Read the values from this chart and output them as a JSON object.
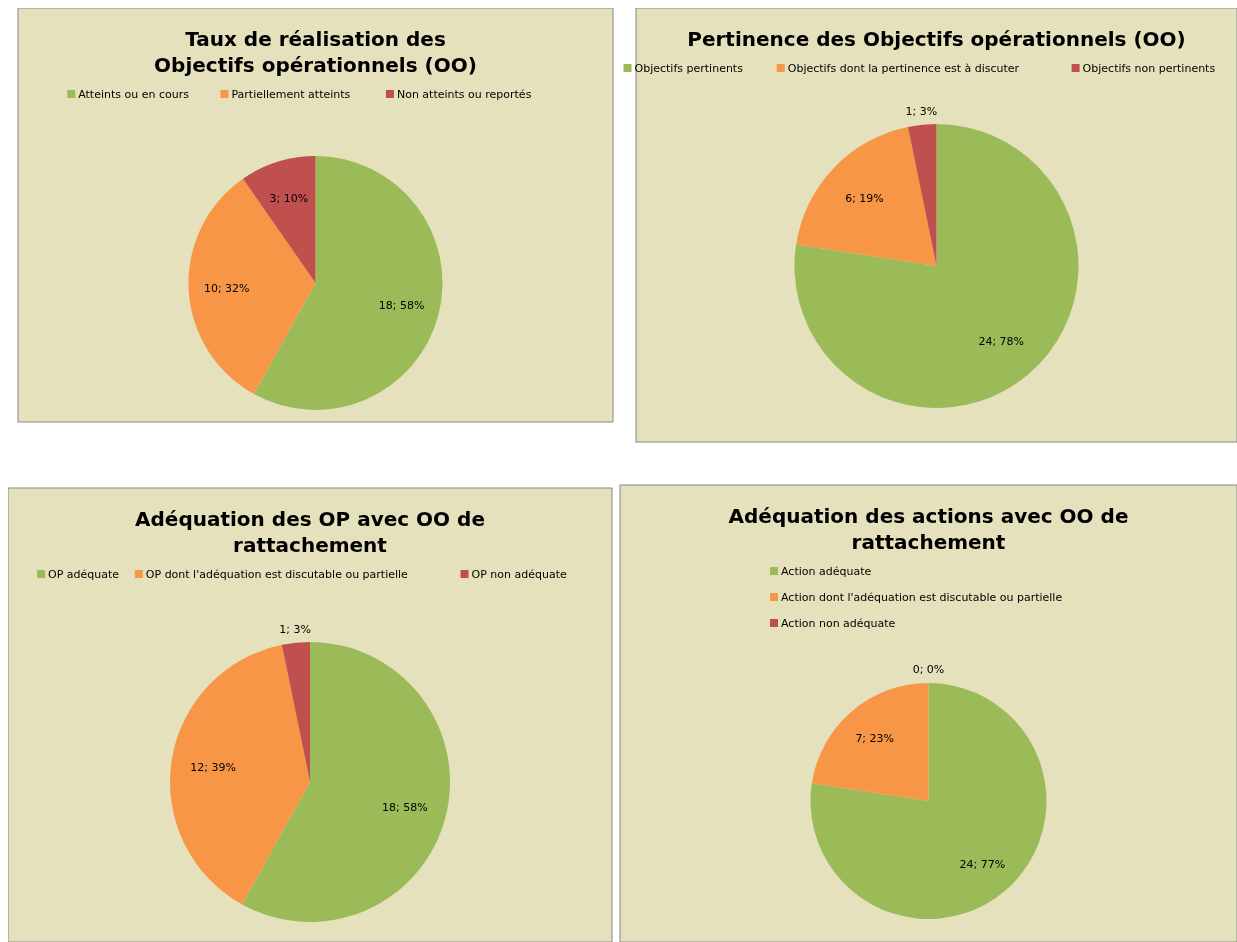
{
  "chart_data": [
    {
      "type": "pie",
      "title": "Taux de réalisation des Objectifs opérationnels (OO)",
      "categories": [
        "Atteints ou en cours",
        "Partiellement atteints",
        "Non atteints ou reportés"
      ],
      "values": [
        18,
        10,
        3
      ],
      "colors": [
        "#9bbb59",
        "#f79646",
        "#c0504d"
      ],
      "value_labels": [
        "18; 58%",
        "10; 32%",
        "3; 10%"
      ],
      "legend": "top"
    },
    {
      "type": "pie",
      "title": "Pertinence des Objectifs opérationnels (OO)",
      "categories": [
        "Objectifs pertinents",
        "Objectifs dont la pertinence est à discuter",
        "Objectifs non pertinents"
      ],
      "values": [
        24,
        6,
        1
      ],
      "colors": [
        "#9bbb59",
        "#f79646",
        "#c0504d"
      ],
      "value_labels": [
        "24; 78%",
        "6; 19%",
        "1; 3%"
      ],
      "legend": "top"
    },
    {
      "type": "pie",
      "title": "Adéquation des OP avec OO de rattachement",
      "categories": [
        "OP adéquate",
        "OP dont l'adéquation est discutable ou partielle",
        "OP non adéquate"
      ],
      "values": [
        18,
        12,
        1
      ],
      "colors": [
        "#9bbb59",
        "#f79646",
        "#c0504d"
      ],
      "value_labels": [
        "18; 58%",
        "12; 39%",
        "1; 3%"
      ],
      "legend": "top"
    },
    {
      "type": "pie",
      "title": "Adéquation des actions avec OO de rattachement",
      "categories": [
        "Action adéquate",
        "Action dont l'adéquation est discutable ou partielle",
        "Action non adéquate"
      ],
      "values": [
        24,
        7,
        0
      ],
      "colors": [
        "#9bbb59",
        "#f79646",
        "#c0504d"
      ],
      "value_labels": [
        "24; 77%",
        "7; 23%",
        "0; 0%"
      ],
      "legend": "top"
    }
  ]
}
